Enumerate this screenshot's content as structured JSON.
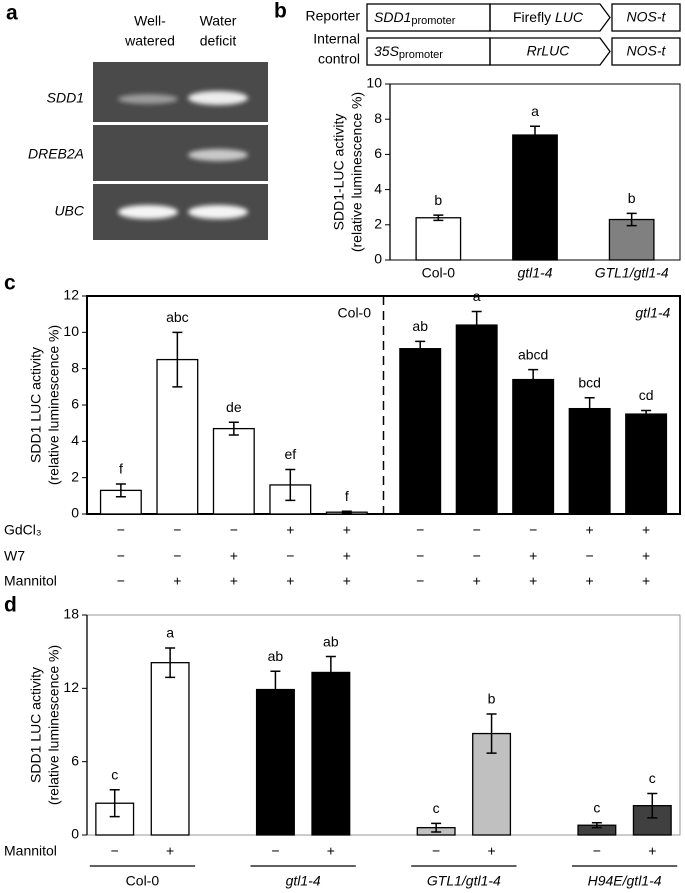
{
  "panel_labels": [
    "a",
    "b",
    "c",
    "d"
  ],
  "gel": {
    "columns": [
      [
        "Well-",
        "watered"
      ],
      [
        "Water",
        "deficit"
      ]
    ],
    "genes": [
      "SDD1",
      "DREB2A",
      "UBC"
    ]
  },
  "constructs": {
    "rows": [
      {
        "label": [
          "Reporter"
        ],
        "promoter": {
          "text": "SDD1",
          "sub": "promoter"
        },
        "gene": {
          "plain": "Firefly",
          "italic": "LUC"
        },
        "terminator": "NOS-t"
      },
      {
        "label": [
          "Internal",
          "control"
        ],
        "promoter": {
          "text": "35S",
          "sub": "promoter"
        },
        "gene": {
          "italic": "RrLUC"
        },
        "terminator": "NOS-t"
      }
    ]
  },
  "chart_data": [
    {
      "type": "bar",
      "ylabel": [
        "SDD1-LUC activity",
        "(relative luminescence %)"
      ],
      "categories": [
        "Col-0",
        "gtl1-4",
        "GTL1/gtl1-4"
      ],
      "values": [
        2.4,
        7.1,
        2.3
      ],
      "errors": [
        0.15,
        0.5,
        0.35
      ],
      "letters": [
        "b",
        "a",
        "b"
      ],
      "colors": [
        "#ffffff",
        "#000000",
        "#808080"
      ],
      "ylim": [
        0,
        10
      ],
      "yticks": [
        0,
        2,
        4,
        6,
        8,
        10
      ]
    },
    {
      "type": "bar",
      "ylabel": [
        "SDD1 LUC activity",
        "(relative luminescence %)"
      ],
      "series": [
        {
          "name": "Col-0",
          "color": "#ffffff",
          "values": [
            1.3,
            8.5,
            4.7,
            1.6,
            0.1
          ],
          "errors": [
            0.35,
            1.5,
            0.35,
            0.85,
            0.05
          ],
          "letters": [
            "f",
            "abc",
            "de",
            "ef",
            "f"
          ]
        },
        {
          "name": "gtl1-4",
          "color": "#000000",
          "values": [
            9.1,
            10.4,
            7.4,
            5.8,
            5.5
          ],
          "errors": [
            0.4,
            0.75,
            0.55,
            0.6,
            0.2
          ],
          "letters": [
            "ab",
            "a",
            "abcd",
            "bcd",
            "cd"
          ]
        }
      ],
      "treatments": [
        {
          "name": "GdCl₃",
          "signs": [
            "−",
            "−",
            "−",
            "+",
            "+",
            "−",
            "−",
            "−",
            "+",
            "+"
          ]
        },
        {
          "name": "W7",
          "signs": [
            "−",
            "−",
            "+",
            "−",
            "+",
            "−",
            "−",
            "+",
            "−",
            "+"
          ]
        },
        {
          "name": "Mannitol",
          "signs": [
            "−",
            "+",
            "+",
            "+",
            "+",
            "−",
            "+",
            "+",
            "+",
            "+"
          ]
        }
      ],
      "ylim": [
        0,
        12
      ],
      "yticks": [
        0,
        2,
        4,
        6,
        8,
        10,
        12
      ]
    },
    {
      "type": "bar",
      "ylabel": [
        "SDD1 LUC activity",
        "(relative luminescence %)"
      ],
      "series": [
        {
          "name": "Col-0",
          "color": "#ffffff",
          "values": [
            2.6,
            14.1
          ],
          "errors": [
            1.1,
            1.2
          ],
          "letters": [
            "c",
            "a"
          ]
        },
        {
          "name": "gtl1-4",
          "color": "#000000",
          "values": [
            11.9,
            13.3
          ],
          "errors": [
            1.5,
            1.3
          ],
          "letters": [
            "ab",
            "ab"
          ]
        },
        {
          "name": "GTL1/gtl1-4",
          "color": "#c0c0c0",
          "values": [
            0.6,
            8.3
          ],
          "errors": [
            0.35,
            1.6
          ],
          "letters": [
            "c",
            "b"
          ]
        },
        {
          "name": "H94E/gtl1-4",
          "color": "#404040",
          "values": [
            0.8,
            2.4
          ],
          "errors": [
            0.2,
            1.0
          ],
          "letters": [
            "c",
            "c"
          ]
        }
      ],
      "treatments": [
        {
          "name": "Mannitol",
          "signs": [
            "−",
            "+",
            "−",
            "+",
            "−",
            "+",
            "−",
            "+"
          ]
        }
      ],
      "ylim": [
        0,
        18
      ],
      "yticks": [
        0,
        6,
        12,
        18
      ]
    }
  ]
}
